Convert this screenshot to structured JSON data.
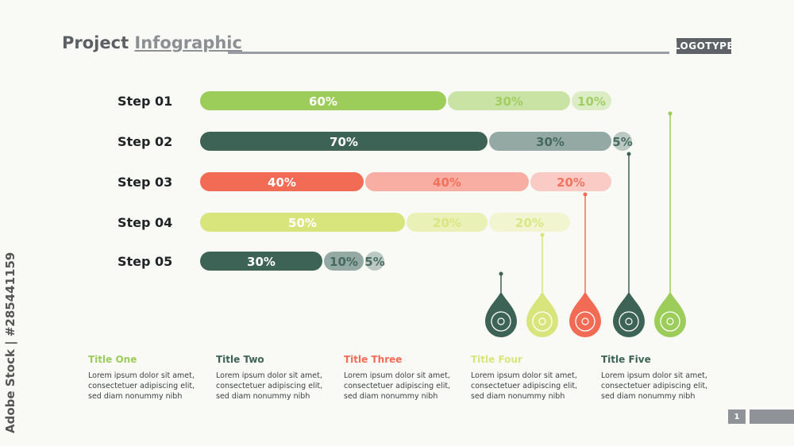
{
  "header": {
    "title_part1": "Project",
    "title_part2": "Infographic",
    "logo": "LOGOTYPE"
  },
  "watermark": "Adobe Stock | #285441159",
  "colors": {
    "green": "#9ccc5a",
    "darkgreen": "#3d6357",
    "red": "#f26b55",
    "lime": "#d8e57c"
  },
  "chart_data": {
    "type": "bar",
    "stacked": true,
    "categories": [
      "Step 01",
      "Step 02",
      "Step 03",
      "Step 04",
      "Step 05"
    ],
    "rows": [
      {
        "label": "Step 01",
        "color": "#9ccc5a",
        "segments": [
          60,
          30,
          10
        ],
        "labels": [
          "60%",
          "30%",
          "10%"
        ]
      },
      {
        "label": "Step 02",
        "color": "#3d6357",
        "segments": [
          70,
          30,
          5
        ],
        "labels": [
          "70%",
          "30%",
          "5%"
        ]
      },
      {
        "label": "Step 03",
        "color": "#f26b55",
        "segments": [
          40,
          40,
          20
        ],
        "labels": [
          "40%",
          "40%",
          "20%"
        ]
      },
      {
        "label": "Step 04",
        "color": "#d8e57c",
        "segments": [
          50,
          20,
          20
        ],
        "labels": [
          "50%",
          "20%",
          "20%"
        ]
      },
      {
        "label": "Step 05",
        "color": "#3d6357",
        "segments": [
          30,
          10,
          5
        ],
        "labels": [
          "30%",
          "10%",
          "5%"
        ]
      }
    ],
    "markers": [
      {
        "icon": "brain-icon",
        "color": "#3d6357"
      },
      {
        "icon": "lightbulb-icon",
        "color": "#d8e57c"
      },
      {
        "icon": "bar-chart-icon",
        "color": "#f26b55"
      },
      {
        "icon": "puzzle-icon",
        "color": "#3d6357"
      },
      {
        "icon": "target-icon",
        "color": "#9ccc5a"
      }
    ]
  },
  "columns": [
    {
      "title": "Title One",
      "color": "#9ccc5a",
      "body": "Lorem ipsum dolor sit amet, consectetuer adipiscing elit, sed diam nonummy nibh"
    },
    {
      "title": "Title Two",
      "color": "#3d6357",
      "body": "Lorem ipsum dolor sit amet, consectetuer adipiscing elit, sed diam nonummy nibh"
    },
    {
      "title": "Title Three",
      "color": "#f26b55",
      "body": "Lorem ipsum dolor sit amet, consectetuer adipiscing elit, sed diam nonummy nibh"
    },
    {
      "title": "Title Four",
      "color": "#d8e57c",
      "body": "Lorem ipsum dolor sit amet, consectetuer adipiscing elit, sed diam nonummy nibh"
    },
    {
      "title": "Title Five",
      "color": "#3d6357",
      "body": "Lorem ipsum dolor sit amet, consectetuer adipiscing elit, sed diam nonummy nibh"
    }
  ],
  "footer": {
    "page": "1"
  }
}
